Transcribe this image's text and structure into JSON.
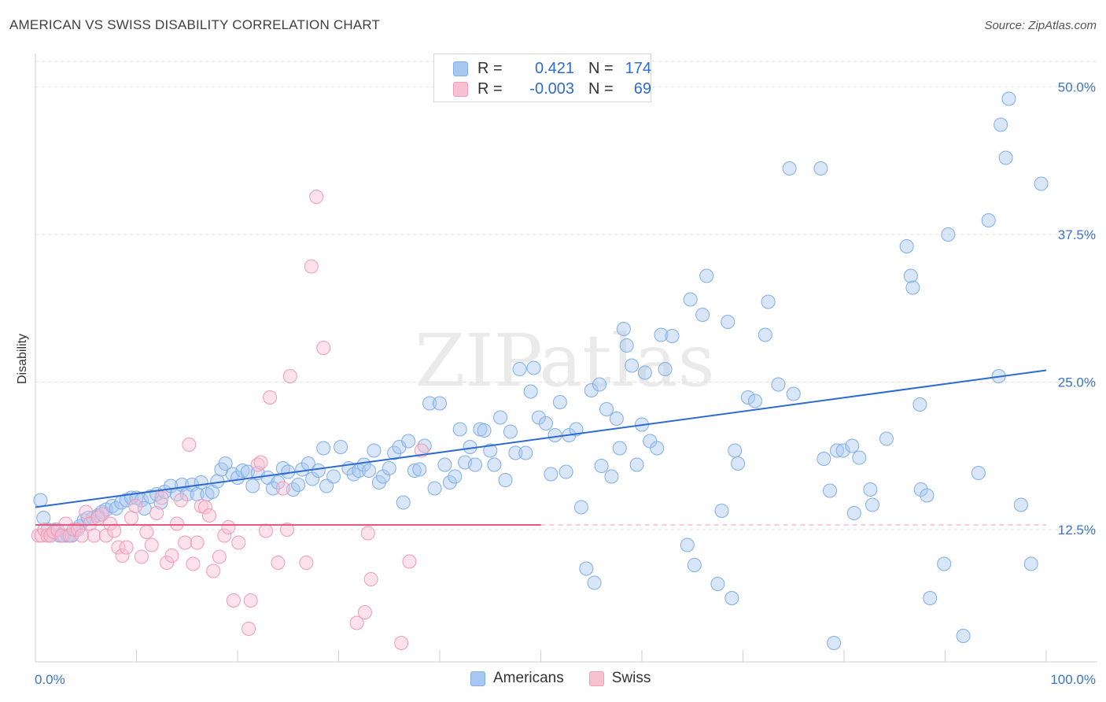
{
  "title": "AMERICAN VS SWISS DISABILITY CORRELATION CHART",
  "source": "Source: ZipAtlas.com",
  "watermark": "ZIPatlas",
  "legend": {
    "rows": [
      {
        "r_label": "R =",
        "r_value": "0.421",
        "n_label": "N =",
        "n_value": "174",
        "color": "#a9c8f0",
        "border": "#7faee8"
      },
      {
        "r_label": "R =",
        "r_value": "-0.003",
        "n_label": "N =",
        "n_value": "69",
        "color": "#f8c1d2",
        "border": "#f09ab5"
      }
    ]
  },
  "bottom_legend": [
    {
      "label": "Americans",
      "color": "#a9c8f0",
      "border": "#7faee8"
    },
    {
      "label": "Swiss",
      "color": "#f8c1d2",
      "border": "#f09ab5"
    }
  ],
  "chart_data": {
    "type": "scatter",
    "title": "AMERICAN VS SWISS DISABILITY CORRELATION CHART",
    "xlabel": "",
    "ylabel": "Disability",
    "xlim": [
      0,
      100
    ],
    "ylim": [
      1.3,
      52.5
    ],
    "x_tick_labels": [
      "0.0%",
      "100.0%"
    ],
    "y_ticks": [
      12.5,
      25.0,
      37.5,
      50.0
    ],
    "y_tick_labels": [
      "12.5%",
      "25.0%",
      "37.5%",
      "50.0%"
    ],
    "grid": "horizontal dashed",
    "legend_position": "top-center",
    "series": [
      {
        "name": "Americans",
        "color": "#7faee8",
        "trend": {
          "x": [
            0,
            100
          ],
          "y": [
            14.4,
            26.0
          ],
          "color": "#2e6bd0"
        },
        "points": [
          [
            0.5,
            15.0
          ],
          [
            0.8,
            13.5
          ],
          [
            1.2,
            12.5
          ],
          [
            1.5,
            12.0
          ],
          [
            2.0,
            12.5
          ],
          [
            2.4,
            12.0
          ],
          [
            2.8,
            12.0
          ],
          [
            3.2,
            12.0
          ],
          [
            3.6,
            12.0
          ],
          [
            4.0,
            12.5
          ],
          [
            4.4,
            12.8
          ],
          [
            4.8,
            13.3
          ],
          [
            5.2,
            13.5
          ],
          [
            5.7,
            13.5
          ],
          [
            6.2,
            13.7
          ],
          [
            6.6,
            14.0
          ],
          [
            7.0,
            14.2
          ],
          [
            7.6,
            14.5
          ],
          [
            8.0,
            14.3
          ],
          [
            8.5,
            14.8
          ],
          [
            9.0,
            15.0
          ],
          [
            9.5,
            15.2
          ],
          [
            10.0,
            15.2
          ],
          [
            10.5,
            15.0
          ],
          [
            10.8,
            14.3
          ],
          [
            11.4,
            15.3
          ],
          [
            12.0,
            15.5
          ],
          [
            12.4,
            14.8
          ],
          [
            12.8,
            15.7
          ],
          [
            13.4,
            16.2
          ],
          [
            14.0,
            15.5
          ],
          [
            14.5,
            16.3
          ],
          [
            15.0,
            15.5
          ],
          [
            15.5,
            16.3
          ],
          [
            16.0,
            15.5
          ],
          [
            16.4,
            16.5
          ],
          [
            17.0,
            15.5
          ],
          [
            17.5,
            15.7
          ],
          [
            18.0,
            16.6
          ],
          [
            18.4,
            17.6
          ],
          [
            18.8,
            18.1
          ],
          [
            19.5,
            17.2
          ],
          [
            20.0,
            16.9
          ],
          [
            20.5,
            17.5
          ],
          [
            21.0,
            17.4
          ],
          [
            21.5,
            16.2
          ],
          [
            22.0,
            17.3
          ],
          [
            23.0,
            16.9
          ],
          [
            23.5,
            16.0
          ],
          [
            24.0,
            16.5
          ],
          [
            24.5,
            17.7
          ],
          [
            25.0,
            17.4
          ],
          [
            25.5,
            15.9
          ],
          [
            26.0,
            16.3
          ],
          [
            26.4,
            17.6
          ],
          [
            27.0,
            18.1
          ],
          [
            27.4,
            16.8
          ],
          [
            28.0,
            17.5
          ],
          [
            28.5,
            19.4
          ],
          [
            28.8,
            16.2
          ],
          [
            29.5,
            17.0
          ],
          [
            30.2,
            19.5
          ],
          [
            31.0,
            17.7
          ],
          [
            31.5,
            17.2
          ],
          [
            32.0,
            17.5
          ],
          [
            32.5,
            18.0
          ],
          [
            33.0,
            17.5
          ],
          [
            33.5,
            19.2
          ],
          [
            34.0,
            16.5
          ],
          [
            34.4,
            17.0
          ],
          [
            35.0,
            17.7
          ],
          [
            35.5,
            19.0
          ],
          [
            36.0,
            19.5
          ],
          [
            36.4,
            14.8
          ],
          [
            36.9,
            20.0
          ],
          [
            37.5,
            17.5
          ],
          [
            38.0,
            17.6
          ],
          [
            38.5,
            19.6
          ],
          [
            39.0,
            23.2
          ],
          [
            39.5,
            16.0
          ],
          [
            40.0,
            23.2
          ],
          [
            40.5,
            18.0
          ],
          [
            41.0,
            16.5
          ],
          [
            41.5,
            17.0
          ],
          [
            42.0,
            21.0
          ],
          [
            42.5,
            18.2
          ],
          [
            43.0,
            19.5
          ],
          [
            43.5,
            18.0
          ],
          [
            44.0,
            21.0
          ],
          [
            44.4,
            20.9
          ],
          [
            45.0,
            19.2
          ],
          [
            45.4,
            18.0
          ],
          [
            46.0,
            22.0
          ],
          [
            46.5,
            16.7
          ],
          [
            47.0,
            20.8
          ],
          [
            47.5,
            19.0
          ],
          [
            47.9,
            26.1
          ],
          [
            48.5,
            19.0
          ],
          [
            49.0,
            24.2
          ],
          [
            49.3,
            26.2
          ],
          [
            49.8,
            22.0
          ],
          [
            50.5,
            21.5
          ],
          [
            51.0,
            17.2
          ],
          [
            51.4,
            20.5
          ],
          [
            51.9,
            23.3
          ],
          [
            52.5,
            17.4
          ],
          [
            52.8,
            20.5
          ],
          [
            53.5,
            21.0
          ],
          [
            54.0,
            14.4
          ],
          [
            54.5,
            9.2
          ],
          [
            55.0,
            24.3
          ],
          [
            55.3,
            8.0
          ],
          [
            55.8,
            24.8
          ],
          [
            56.0,
            17.9
          ],
          [
            56.5,
            22.7
          ],
          [
            57.0,
            17.0
          ],
          [
            57.5,
            21.9
          ],
          [
            57.8,
            19.4
          ],
          [
            58.2,
            29.5
          ],
          [
            58.5,
            28.1
          ],
          [
            59.0,
            26.4
          ],
          [
            59.5,
            18.0
          ],
          [
            60.0,
            21.4
          ],
          [
            60.3,
            25.8
          ],
          [
            60.8,
            20.0
          ],
          [
            61.5,
            19.4
          ],
          [
            61.9,
            29.0
          ],
          [
            62.3,
            26.1
          ],
          [
            63.0,
            28.9
          ],
          [
            64.5,
            11.2
          ],
          [
            64.8,
            32.0
          ],
          [
            65.2,
            9.5
          ],
          [
            66.0,
            30.7
          ],
          [
            66.4,
            34.0
          ],
          [
            67.5,
            7.9
          ],
          [
            67.9,
            14.1
          ],
          [
            68.5,
            30.1
          ],
          [
            68.9,
            6.7
          ],
          [
            69.2,
            19.2
          ],
          [
            69.5,
            18.1
          ],
          [
            70.5,
            23.7
          ],
          [
            71.2,
            23.4
          ],
          [
            72.2,
            29.0
          ],
          [
            72.5,
            31.8
          ],
          [
            73.5,
            24.8
          ],
          [
            74.6,
            43.1
          ],
          [
            75.0,
            24.0
          ],
          [
            77.7,
            43.1
          ],
          [
            78.0,
            18.5
          ],
          [
            78.6,
            15.8
          ],
          [
            79.0,
            2.9
          ],
          [
            79.3,
            19.2
          ],
          [
            79.9,
            19.2
          ],
          [
            80.8,
            19.6
          ],
          [
            81.0,
            13.9
          ],
          [
            81.5,
            18.6
          ],
          [
            82.6,
            15.9
          ],
          [
            82.8,
            14.6
          ],
          [
            84.2,
            20.2
          ],
          [
            86.2,
            36.5
          ],
          [
            86.6,
            34.0
          ],
          [
            86.8,
            33.0
          ],
          [
            87.5,
            23.1
          ],
          [
            87.6,
            15.9
          ],
          [
            88.2,
            15.4
          ],
          [
            88.5,
            6.7
          ],
          [
            89.9,
            9.6
          ],
          [
            90.3,
            37.5
          ],
          [
            91.8,
            3.5
          ],
          [
            93.3,
            17.3
          ],
          [
            94.3,
            38.7
          ],
          [
            95.3,
            25.5
          ],
          [
            95.5,
            46.8
          ],
          [
            96.0,
            44.0
          ],
          [
            96.3,
            49.0
          ],
          [
            97.5,
            14.6
          ],
          [
            98.5,
            9.6
          ],
          [
            99.5,
            41.8
          ]
        ]
      },
      {
        "name": "Swiss",
        "color": "#f09ab5",
        "trend": {
          "x": [
            0,
            50
          ],
          "y": [
            12.9,
            12.9
          ],
          "color": "#e8577e"
        },
        "points": [
          [
            0.3,
            12.0
          ],
          [
            0.6,
            12.0
          ],
          [
            0.9,
            12.5
          ],
          [
            1.2,
            12.0
          ],
          [
            1.5,
            12.0
          ],
          [
            1.8,
            12.3
          ],
          [
            2.2,
            12.5
          ],
          [
            2.6,
            12.0
          ],
          [
            3.0,
            13.0
          ],
          [
            3.4,
            12.0
          ],
          [
            3.8,
            12.5
          ],
          [
            4.2,
            12.5
          ],
          [
            4.6,
            12.0
          ],
          [
            5.0,
            14.0
          ],
          [
            5.4,
            13.0
          ],
          [
            5.8,
            12.0
          ],
          [
            6.2,
            13.5
          ],
          [
            6.6,
            13.8
          ],
          [
            7.0,
            12.0
          ],
          [
            7.4,
            13.0
          ],
          [
            7.8,
            12.4
          ],
          [
            8.2,
            11.0
          ],
          [
            8.6,
            10.3
          ],
          [
            9.0,
            11.0
          ],
          [
            9.5,
            13.5
          ],
          [
            9.9,
            14.5
          ],
          [
            10.5,
            10.2
          ],
          [
            11.0,
            12.3
          ],
          [
            11.5,
            11.2
          ],
          [
            12.0,
            13.9
          ],
          [
            12.5,
            15.2
          ],
          [
            13.0,
            9.7
          ],
          [
            13.5,
            10.3
          ],
          [
            14.0,
            13.0
          ],
          [
            14.4,
            15.0
          ],
          [
            14.8,
            11.4
          ],
          [
            15.2,
            19.7
          ],
          [
            15.6,
            9.6
          ],
          [
            16.0,
            11.4
          ],
          [
            16.4,
            14.5
          ],
          [
            16.8,
            14.4
          ],
          [
            17.2,
            13.7
          ],
          [
            17.6,
            9.0
          ],
          [
            18.2,
            10.2
          ],
          [
            18.7,
            12.0
          ],
          [
            19.1,
            12.7
          ],
          [
            19.6,
            6.5
          ],
          [
            20.1,
            11.4
          ],
          [
            21.1,
            4.1
          ],
          [
            21.3,
            6.5
          ],
          [
            22.0,
            18.0
          ],
          [
            22.3,
            18.2
          ],
          [
            22.8,
            12.4
          ],
          [
            23.2,
            23.7
          ],
          [
            24.0,
            9.7
          ],
          [
            24.5,
            16.0
          ],
          [
            24.9,
            12.5
          ],
          [
            25.2,
            25.5
          ],
          [
            26.8,
            9.7
          ],
          [
            27.3,
            34.8
          ],
          [
            27.8,
            40.7
          ],
          [
            28.5,
            27.9
          ],
          [
            31.8,
            4.6
          ],
          [
            32.6,
            5.5
          ],
          [
            32.9,
            12.2
          ],
          [
            33.2,
            8.3
          ],
          [
            36.2,
            2.9
          ],
          [
            37.0,
            9.8
          ],
          [
            38.2,
            19.2
          ]
        ]
      }
    ]
  }
}
